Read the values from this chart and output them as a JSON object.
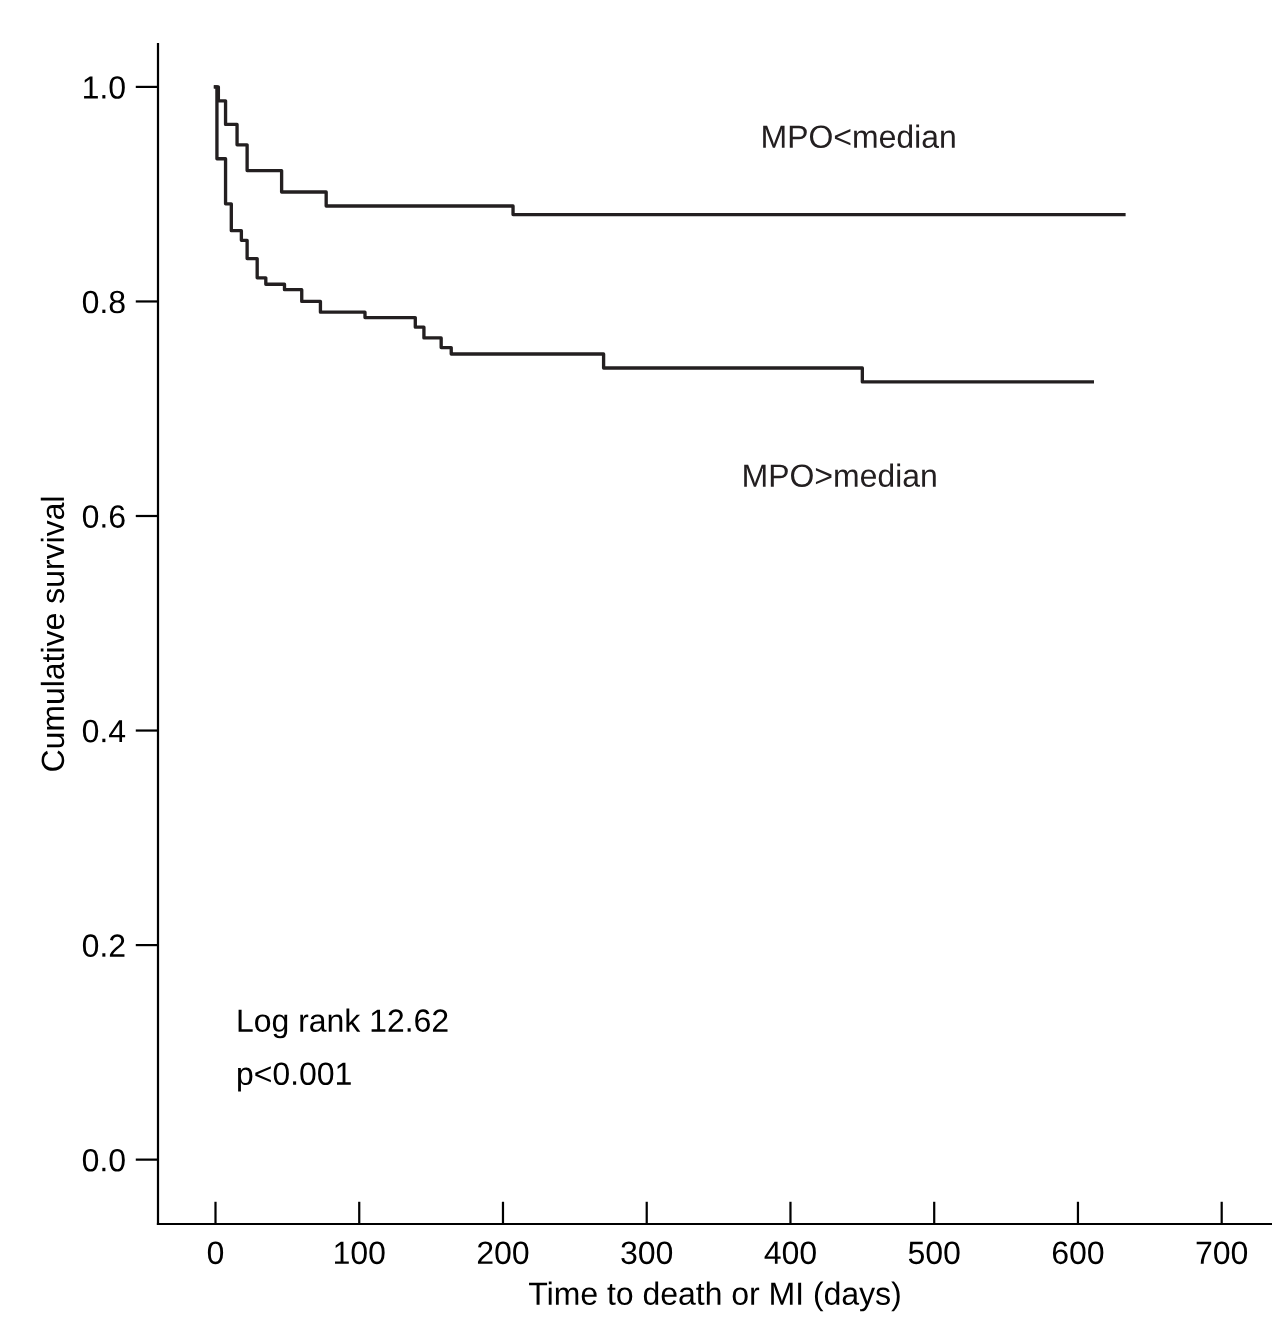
{
  "chart_data": {
    "type": "step",
    "xlabel": "Time to death or MI (days)",
    "ylabel": "Cumulative survival",
    "series": [
      {
        "name": "MPO<median",
        "color": "#231f20",
        "x": [
          0,
          2,
          7,
          15,
          22,
          46,
          77,
          207,
          632
        ],
        "values": [
          1.0,
          0.987,
          0.965,
          0.946,
          0.922,
          0.902,
          0.889,
          0.881,
          0.881
        ]
      },
      {
        "name": "MPO>median",
        "color": "#231f20",
        "x": [
          0,
          1,
          7,
          11,
          18,
          22,
          29,
          35,
          48,
          60,
          73,
          104,
          139,
          145,
          157,
          164,
          270,
          450,
          610
        ],
        "values": [
          1.0,
          0.933,
          0.891,
          0.866,
          0.857,
          0.84,
          0.822,
          0.816,
          0.811,
          0.8,
          0.79,
          0.785,
          0.776,
          0.766,
          0.757,
          0.751,
          0.738,
          0.725,
          0.725
        ]
      }
    ],
    "xlim": [
      -40,
      735
    ],
    "xticks": [
      0,
      100,
      200,
      300,
      400,
      500,
      600,
      700
    ],
    "ylim": [
      -0.06,
      1.04
    ],
    "yticks": [
      {
        "value": 0,
        "label": "0.0"
      },
      {
        "value": 0.2,
        "label": "0.2"
      },
      {
        "value": 0.4,
        "label": "0.4"
      },
      {
        "value": 0.6,
        "label": "0.6"
      },
      {
        "value": 0.8,
        "label": "0.8"
      },
      {
        "value": 1,
        "label": "1.0"
      }
    ],
    "annotations": [
      "Log rank 12.62",
      "p<0.001"
    ],
    "grid": false,
    "legend": false,
    "line_style": "solid"
  }
}
